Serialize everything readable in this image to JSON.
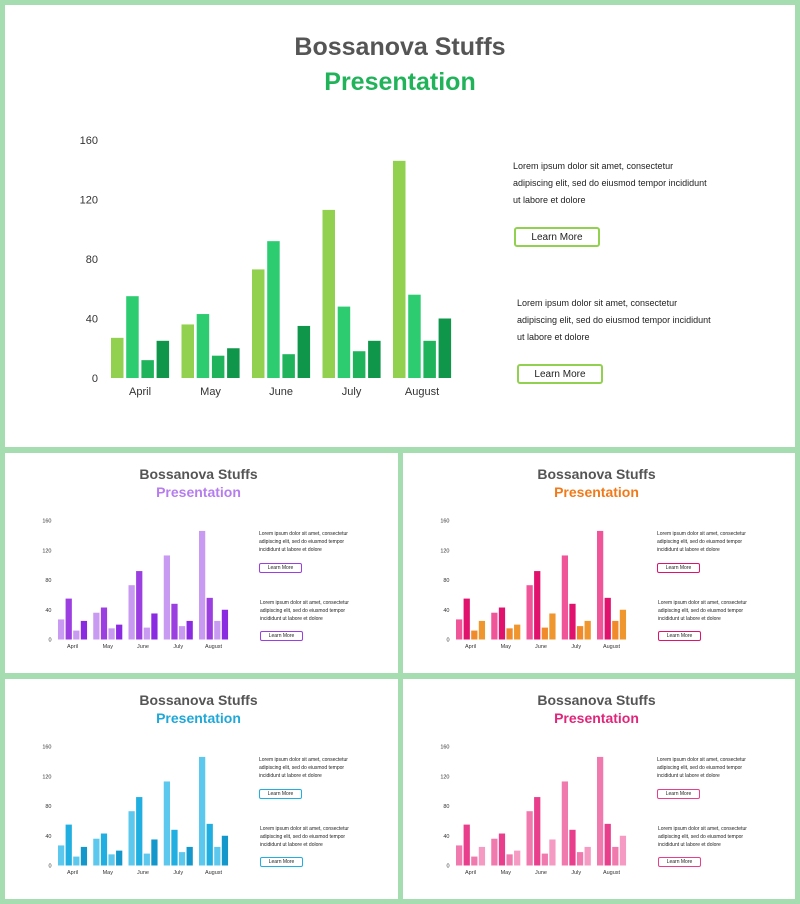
{
  "chart_data": [
    {
      "type": "bar",
      "categories": [
        "April",
        "May",
        "June",
        "July",
        "August"
      ],
      "series": [
        {
          "values": [
            27,
            36,
            73,
            113,
            146
          ]
        },
        {
          "values": [
            55,
            43,
            92,
            48,
            56
          ]
        },
        {
          "values": [
            12,
            15,
            16,
            18,
            25
          ]
        },
        {
          "values": [
            25,
            20,
            35,
            25,
            40
          ]
        }
      ],
      "yticks": [
        0,
        40,
        80,
        120,
        160
      ],
      "ylim": [
        0,
        160
      ]
    }
  ],
  "slides": [
    {
      "title": "Bossanova Stuffs",
      "subtitle": "Presentation",
      "accent": "#21b35a",
      "colors": [
        "#92d050",
        "#2ecc71",
        "#1fb45c",
        "#10964a"
      ],
      "blocks": [
        {
          "text": "Lorem ipsum dolor sit amet, consectetur adipiscing elit, sed do eiusmod tempor incididunt ut labore et dolore",
          "button": "Learn More"
        },
        {
          "text": "Lorem ipsum dolor sit amet, consectetur adipiscing elit, sed do eiusmod tempor incididunt ut labore et dolore",
          "button": "Learn More"
        }
      ]
    },
    {
      "title": "Bossanova Stuffs",
      "subtitle": "Presentation",
      "accent": "#b57ded",
      "colors": [
        "#c99af2",
        "#9b3fe0",
        "#c99af2",
        "#8a2be2"
      ],
      "blocks": [
        {
          "text": "Lorem ipsum dolor sit amet, consectetur adipiscing elit, sed do eiusmod tempor incididunt ut labore et dolore",
          "button": "Learn More"
        },
        {
          "text": "Lorem ipsum dolor sit amet, consectetur adipiscing elit, sed do eiusmod tempor incididunt ut labore et dolore",
          "button": "Learn More"
        }
      ]
    },
    {
      "title": "Bossanova Stuffs",
      "subtitle": "Presentation",
      "accent": "#f07a1a",
      "colors": [
        "#f0559a",
        "#e0126e",
        "#f08a2a",
        "#f0962e"
      ],
      "blocks": [
        {
          "text": "Lorem ipsum dolor sit amet, consectetur adipiscing elit, sed do eiusmod tempor incididunt ut labore et dolore",
          "button": "Learn More"
        },
        {
          "text": "Lorem ipsum dolor sit amet, consectetur adipiscing elit, sed do eiusmod tempor incididunt ut labore et dolore",
          "button": "Learn More"
        }
      ]
    },
    {
      "title": "Bossanova Stuffs",
      "subtitle": "Presentation",
      "accent": "#1fa8d8",
      "colors": [
        "#5dc8ee",
        "#21aee0",
        "#5dc8ee",
        "#1498cc"
      ],
      "blocks": [
        {
          "text": "Lorem ipsum dolor sit amet, consectetur adipiscing elit, sed do eiusmod tempor incididunt ut labore et dolore",
          "button": "Learn More"
        },
        {
          "text": "Lorem ipsum dolor sit amet, consectetur adipiscing elit, sed do eiusmod tempor incididunt ut labore et dolore",
          "button": "Learn More"
        }
      ]
    },
    {
      "title": "Bossanova Stuffs",
      "subtitle": "Presentation",
      "accent": "#e0267a",
      "colors": [
        "#f07aae",
        "#e83e8c",
        "#f07aae",
        "#f59ac2"
      ],
      "blocks": [
        {
          "text": "Lorem ipsum dolor sit amet, consectetur adipiscing elit, sed do eiusmod tempor incididunt ut labore et dolore",
          "button": "Learn More"
        },
        {
          "text": "Lorem ipsum dolor sit amet, consectetur adipiscing elit, sed do eiusmod tempor incididunt ut labore et dolore",
          "button": "Learn More"
        }
      ]
    }
  ]
}
